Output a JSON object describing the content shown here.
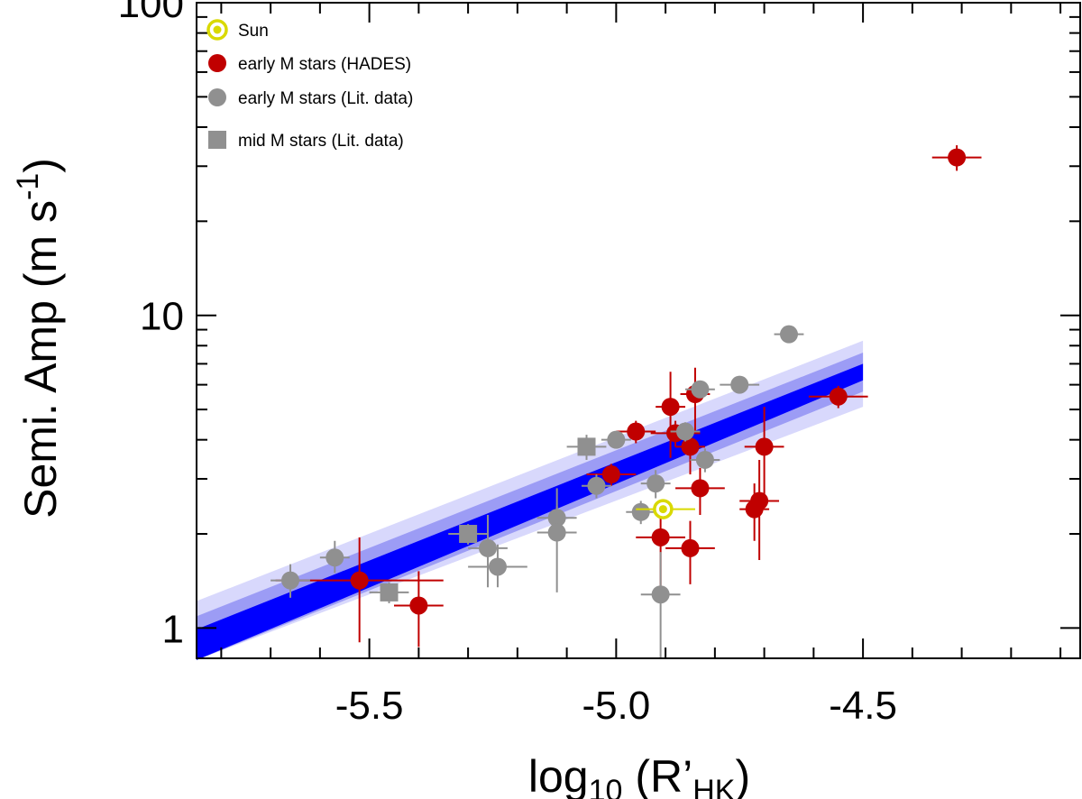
{
  "chart_data": {
    "type": "scatter",
    "title": "",
    "xlabel": {
      "main": "log",
      "sub": "10",
      "rest_open": " (R’",
      "rest_sub": "HK",
      "rest_close": ")"
    },
    "ylabel": {
      "main": "Semi. Amp (m s",
      "sup": "-1",
      "close": ")"
    },
    "x_range": [
      -5.85,
      -4.06
    ],
    "y_range": [
      0.8,
      100
    ],
    "y_scale": "log",
    "x_ticks": [
      {
        "value": -5.5,
        "label": "-5.5"
      },
      {
        "value": -5.0,
        "label": "-5.0"
      },
      {
        "value": -4.5,
        "label": "-4.5"
      }
    ],
    "y_ticks": [
      {
        "value": 1,
        "label": "1"
      },
      {
        "value": 10,
        "label": "10"
      },
      {
        "value": 100,
        "label": "100"
      }
    ],
    "legend": {
      "position": "top-left",
      "entries": [
        {
          "label": "Sun",
          "marker": "sun",
          "color": "#d9d900"
        },
        {
          "label": "early M stars (HADES)",
          "marker": "circle",
          "color": "#c00000"
        },
        {
          "label": "early M stars (Lit. data)",
          "marker": "circle",
          "color": "#909090"
        },
        {
          "label": "mid M stars (Lit. data)",
          "marker": "square",
          "color": "#909090"
        }
      ]
    },
    "fit": {
      "description": "linear fit in log space with confidence bands",
      "x_start": -5.85,
      "x_end": -4.5,
      "core": {
        "color": "#0000ff",
        "at_start": [
          0.79,
          0.99
        ],
        "at_end": [
          6.2,
          7.0
        ]
      },
      "mid": {
        "color": "#9c9cf5",
        "at_start": [
          0.79,
          1.09
        ],
        "at_end": [
          5.7,
          7.6
        ]
      },
      "outer": {
        "color": "#d8d8fc",
        "at_start": [
          0.79,
          1.22
        ],
        "at_end": [
          5.1,
          8.3
        ]
      }
    },
    "series": [
      {
        "name": "early M stars (HADES)",
        "marker": "circle",
        "color": "#c00000",
        "points": [
          {
            "x": -5.52,
            "y": 1.42,
            "xerr": 0.17,
            "ylo": 0.9,
            "yhi": 1.95
          },
          {
            "x": -5.4,
            "y": 1.18,
            "xerr": 0.05,
            "ylo": 0.87,
            "yhi": 1.52
          },
          {
            "x": -5.01,
            "y": 3.1,
            "xerr": 0.05,
            "ylo": 2.85,
            "yhi": 3.35
          },
          {
            "x": -4.96,
            "y": 4.25,
            "xerr": 0.04,
            "ylo": 3.9,
            "yhi": 4.6
          },
          {
            "x": -4.91,
            "y": 1.95,
            "xerr": 0.05,
            "ylo": 1.35,
            "yhi": 2.55
          },
          {
            "x": -4.89,
            "y": 5.1,
            "xerr": 0.03,
            "ylo": 3.5,
            "yhi": 6.6
          },
          {
            "x": -4.88,
            "y": 4.2,
            "xerr": 0.05,
            "ylo": 3.8,
            "yhi": 4.6
          },
          {
            "x": -4.85,
            "y": 1.8,
            "xerr": 0.05,
            "ylo": 1.38,
            "yhi": 2.2
          },
          {
            "x": -4.85,
            "y": 3.8,
            "xerr": 0.03,
            "ylo": 3.1,
            "yhi": 4.4
          },
          {
            "x": -4.84,
            "y": 5.6,
            "xerr": 0.03,
            "ylo": 4.2,
            "yhi": 6.8
          },
          {
            "x": -4.83,
            "y": 2.8,
            "xerr": 0.05,
            "ylo": 2.3,
            "yhi": 3.25
          },
          {
            "x": -4.72,
            "y": 2.4,
            "xerr": 0.03,
            "ylo": 1.9,
            "yhi": 2.9
          },
          {
            "x": -4.71,
            "y": 2.55,
            "xerr": 0.04,
            "ylo": 1.65,
            "yhi": 3.45
          },
          {
            "x": -4.7,
            "y": 3.8,
            "xerr": 0.04,
            "ylo": 2.5,
            "yhi": 5.1
          },
          {
            "x": -4.55,
            "y": 5.5,
            "xerr": 0.06,
            "ylo": 5.05,
            "yhi": 5.95
          },
          {
            "x": -4.31,
            "y": 32.0,
            "xerr": 0.05,
            "ylo": 29.0,
            "yhi": 35.0
          }
        ]
      },
      {
        "name": "early M stars (Lit. data)",
        "marker": "circle",
        "color": "#909090",
        "points": [
          {
            "x": -5.66,
            "y": 1.42,
            "xerr": 0.04,
            "ylo": 1.25,
            "yhi": 1.6
          },
          {
            "x": -5.57,
            "y": 1.68,
            "xerr": 0.03,
            "ylo": 1.5,
            "yhi": 1.9
          },
          {
            "x": -5.26,
            "y": 1.8,
            "xerr": 0.04,
            "ylo": 1.35,
            "yhi": 2.3
          },
          {
            "x": -5.24,
            "y": 1.57,
            "xerr": 0.06,
            "ylo": 1.35,
            "yhi": 1.85
          },
          {
            "x": -5.12,
            "y": 2.25,
            "xerr": 0.04,
            "ylo": 2.05,
            "yhi": 2.45
          },
          {
            "x": -5.12,
            "y": 2.02,
            "xerr": 0.04,
            "ylo": 1.3,
            "yhi": 2.8
          },
          {
            "x": -5.04,
            "y": 2.85,
            "xerr": 0.03,
            "ylo": 2.6,
            "yhi": 3.1
          },
          {
            "x": -5.0,
            "y": 4.0,
            "xerr": 0.03,
            "ylo": 3.75,
            "yhi": 4.25
          },
          {
            "x": -4.95,
            "y": 2.35,
            "xerr": 0.03,
            "ylo": 2.15,
            "yhi": 2.55
          },
          {
            "x": -4.92,
            "y": 2.9,
            "xerr": 0.03,
            "ylo": 2.6,
            "yhi": 3.2
          },
          {
            "x": -4.91,
            "y": 1.28,
            "xerr": 0.04,
            "ylo": 0.8,
            "yhi": 1.75
          },
          {
            "x": -4.86,
            "y": 4.25,
            "xerr": 0.03,
            "ylo": 3.95,
            "yhi": 4.55
          },
          {
            "x": -4.83,
            "y": 5.8,
            "xerr": 0.03,
            "ylo": 5.5,
            "yhi": 6.1
          },
          {
            "x": -4.82,
            "y": 3.45,
            "xerr": 0.03,
            "ylo": 3.15,
            "yhi": 3.75
          },
          {
            "x": -4.75,
            "y": 6.0,
            "xerr": 0.04,
            "ylo": 5.7,
            "yhi": 6.3
          },
          {
            "x": -4.65,
            "y": 8.7,
            "xerr": 0.03,
            "ylo": 8.4,
            "yhi": 9.0
          }
        ]
      },
      {
        "name": "mid M stars (Lit. data)",
        "marker": "square",
        "color": "#909090",
        "points": [
          {
            "x": -5.46,
            "y": 1.3,
            "xerr": 0.04,
            "ylo": 1.2,
            "yhi": 1.4
          },
          {
            "x": -5.3,
            "y": 2.0,
            "xerr": 0.04,
            "ylo": 1.85,
            "yhi": 2.15
          },
          {
            "x": -5.06,
            "y": 3.8,
            "xerr": 0.04,
            "ylo": 3.45,
            "yhi": 4.15
          }
        ]
      },
      {
        "name": "Sun",
        "marker": "sun",
        "color": "#d9d900",
        "points": [
          {
            "x": -4.905,
            "y": 2.4,
            "xlo": -4.96,
            "xhi": -4.84,
            "ylo": 2.35,
            "yhi": 2.45
          }
        ]
      }
    ]
  }
}
